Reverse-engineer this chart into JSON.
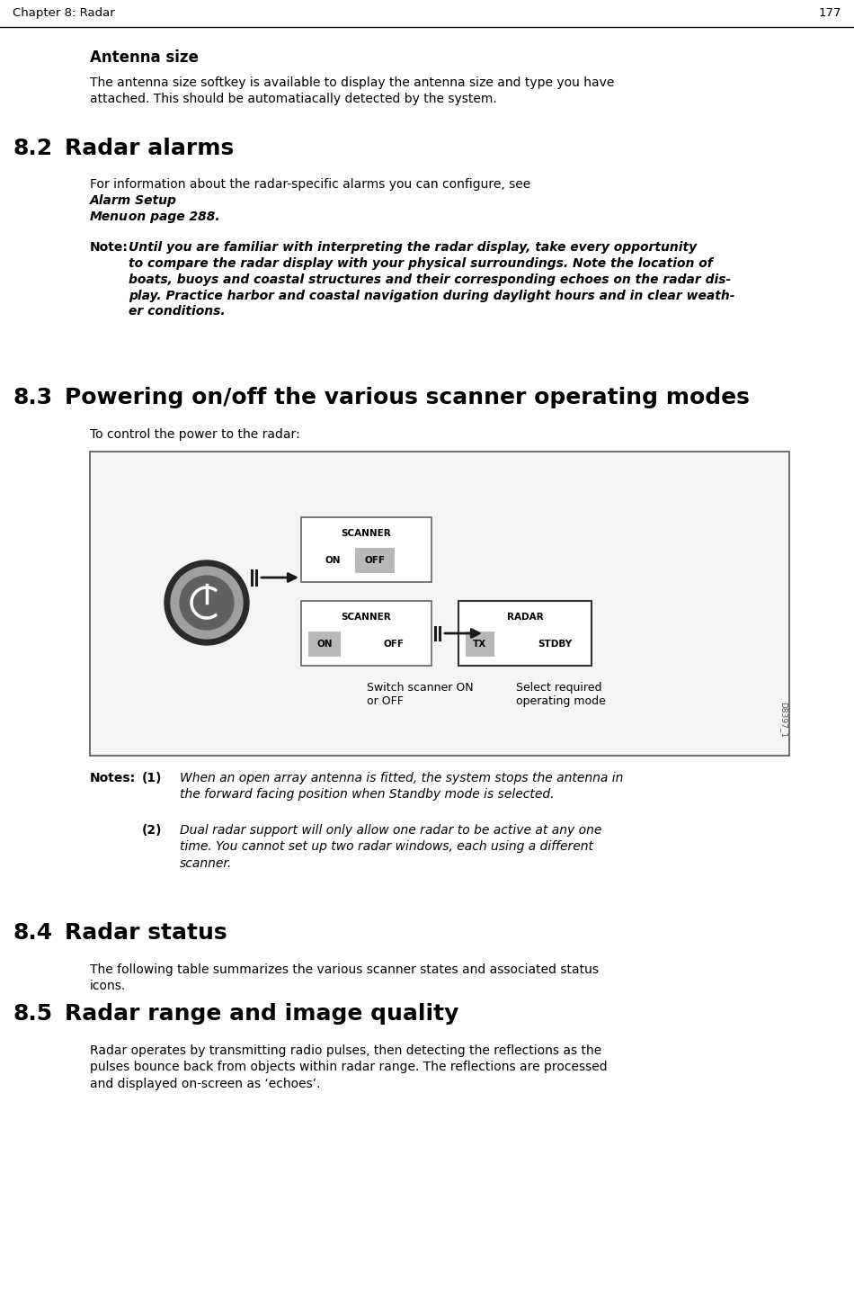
{
  "background_color": "#ffffff",
  "chapter_text": "Chapter 8: Radar",
  "page_number": "177",
  "section_antenna_title": "Antenna size",
  "section_antenna_body": "The antenna size softkey is available to display the antenna size and type you have\nattached. This should be automatiacally detected by the system.",
  "section_82_num": "8.2",
  "section_82_heading": "Radar alarms",
  "section_82_body_plain": "For information about the radar-specific alarms you can configure, see ",
  "section_82_body_italic": "Alarm Setup\nMenu",
  "section_82_body_end": " on page 288.",
  "note_label": "Note:",
  "note_body": "Until you are familiar with interpreting the radar display, take every opportunity\nto compare the radar display with your physical surroundings. Note the location of\nboats, buoys and coastal structures and their corresponding echoes on the radar dis-\nplay. Practice harbor and coastal navigation during daylight hours and in clear weath-\ner conditions.",
  "section_83_num": "8.3",
  "section_83_heading": "Powering on/off the various scanner operating modes",
  "section_83_body": "To control the power to the radar:",
  "scanner_box1_top": "SCANNER",
  "scanner_box1_on": "ON",
  "scanner_box1_off": "OFF",
  "scanner_box2_top": "SCANNER",
  "scanner_box2_on": "ON",
  "scanner_box2_off": "OFF",
  "radar_box_top": "RADAR",
  "radar_box_tx": "TX",
  "radar_box_stdby": "STDBY",
  "caption_left": "Switch scanner ON\nor OFF",
  "caption_right": "Select required\noperating mode",
  "diagram_id": "D8397_1",
  "notes_label": "Notes:",
  "note1_num": "(1)",
  "note1_text": "When an open array antenna is fitted, the system stops the antenna in\nthe forward facing position when Standby mode is selected.",
  "note2_num": "(2)",
  "note2_text": "Dual radar support will only allow one radar to be active at any one\ntime. You cannot set up two radar windows, each using a different\nscanner.",
  "section_84_num": "8.4",
  "section_84_heading": "Radar status",
  "section_84_body": "The following table summarizes the various scanner states and associated status\nicons.",
  "section_85_num": "8.5",
  "section_85_heading": "Radar range and image quality",
  "section_85_body": "Radar operates by transmitting radio pulses, then detecting the reflections as the\npulses bounce back from objects within radar range. The reflections are processed\nand displayed on-screen as ‘echoes’."
}
